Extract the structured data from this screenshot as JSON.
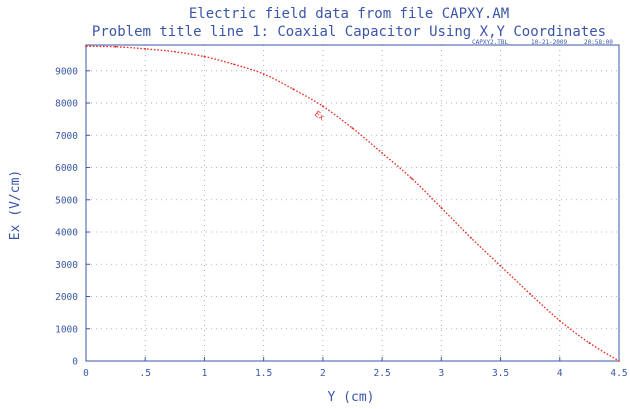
{
  "chart_data": {
    "type": "line",
    "title": "Electric field data from file CAPXY.AM",
    "subtitle": "Problem title line 1: Coaxial Capacitor Using X,Y Coordinates",
    "file_tag": "CAPXY2.TBL",
    "date": "10-21-2009",
    "time": "20:58:00",
    "xlabel": "Y (cm)",
    "ylabel": "Ex (V/cm)",
    "xlim": [
      0,
      4.5
    ],
    "ylim": [
      0,
      9800
    ],
    "xticks": [
      0,
      0.5,
      1,
      1.5,
      2,
      2.5,
      3,
      3.5,
      4,
      4.5
    ],
    "xtick_labels": [
      "0",
      ".5",
      "1",
      "1.5",
      "2",
      "2.5",
      "3",
      "3.5",
      "4",
      "4.5"
    ],
    "yticks": [
      0,
      1000,
      2000,
      3000,
      4000,
      5000,
      6000,
      7000,
      8000,
      9000
    ],
    "grid": true,
    "series": [
      {
        "name": "Ex",
        "color": "#e8281a",
        "x": [
          0,
          0.25,
          0.5,
          0.75,
          1.0,
          1.25,
          1.5,
          1.75,
          2.0,
          2.25,
          2.5,
          2.75,
          3.0,
          3.25,
          3.5,
          3.75,
          4.0,
          4.25,
          4.5
        ],
        "y": [
          9760,
          9745,
          9680,
          9590,
          9440,
          9200,
          8900,
          8430,
          7900,
          7220,
          6450,
          5660,
          4750,
          3820,
          2950,
          2080,
          1250,
          560,
          0
        ]
      }
    ]
  }
}
